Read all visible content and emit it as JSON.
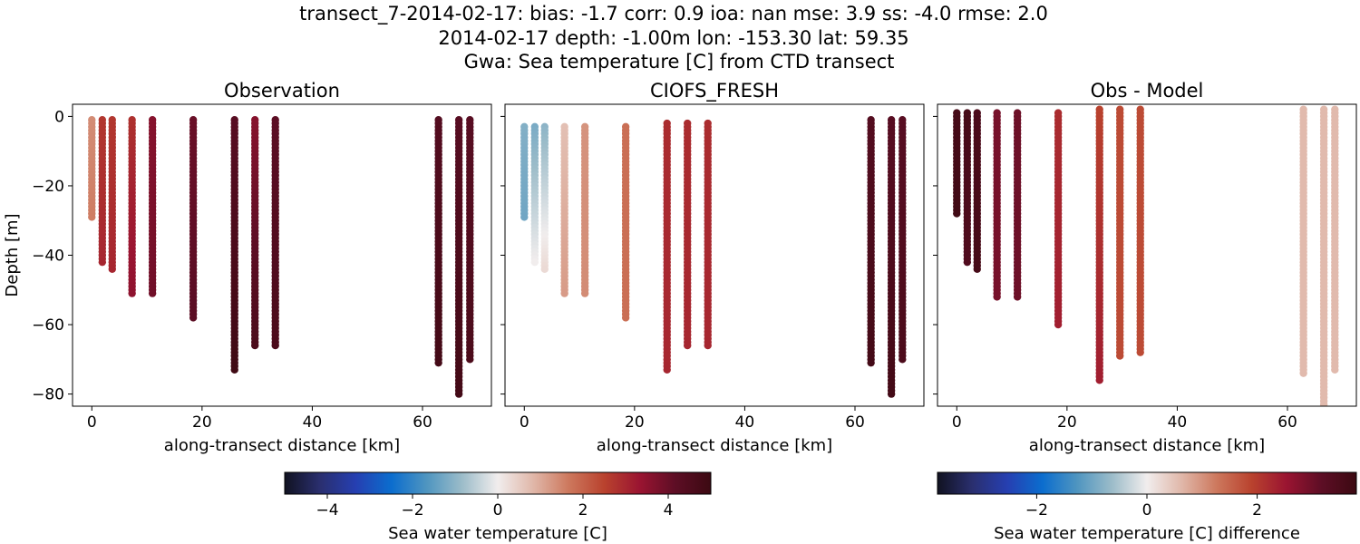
{
  "figure": {
    "title_lines": [
      "transect_7-2014-02-17: bias: -1.7  corr: 0.9  ioa: nan  mse: 3.9  ss: -4.0  rmse: 2.0",
      "2014-02-17 depth: -1.00m lon: -153.30 lat: 59.35",
      "Gwa: Sea temperature [C] from CTD transect"
    ]
  },
  "chart_data": [
    {
      "type": "scatter",
      "title": "Observation",
      "xlabel": "along-transect distance [km]",
      "ylabel": "Depth [m]",
      "xlim": [
        -3.5,
        72.5
      ],
      "ylim": [
        -83.5,
        3.5
      ],
      "xticks": [
        0,
        20,
        40,
        60
      ],
      "yticks": [
        0,
        -20,
        -40,
        -60,
        -80
      ],
      "show_y_tick_labels": true,
      "colormap": "balance",
      "vmin": -5,
      "vmax": 5,
      "profiles": [
        {
          "x": 0.0,
          "top": -1,
          "bottom": -29,
          "value_top": 1.4,
          "value_bottom": 1.6
        },
        {
          "x": 1.9,
          "top": -1,
          "bottom": -42,
          "value_top": 2.7,
          "value_bottom": 3.0
        },
        {
          "x": 3.7,
          "top": -1,
          "bottom": -44,
          "value_top": 2.7,
          "value_bottom": 3.0
        },
        {
          "x": 7.3,
          "top": -1,
          "bottom": -51,
          "value_top": 2.8,
          "value_bottom": 3.5
        },
        {
          "x": 11.0,
          "top": -1,
          "bottom": -51,
          "value_top": 3.6,
          "value_bottom": 3.9
        },
        {
          "x": 18.4,
          "top": -1,
          "bottom": -58,
          "value_top": 4.0,
          "value_bottom": 4.2
        },
        {
          "x": 25.9,
          "top": -1,
          "bottom": -73,
          "value_top": 4.3,
          "value_bottom": 4.9
        },
        {
          "x": 29.6,
          "top": -1,
          "bottom": -66,
          "value_top": 3.6,
          "value_bottom": 4.6
        },
        {
          "x": 33.3,
          "top": -1,
          "bottom": -66,
          "value_top": 4.2,
          "value_bottom": 4.6
        },
        {
          "x": 62.9,
          "top": -1,
          "bottom": -71,
          "value_top": 4.4,
          "value_bottom": 4.8
        },
        {
          "x": 66.6,
          "top": -1,
          "bottom": -80,
          "value_top": 4.3,
          "value_bottom": 4.8
        },
        {
          "x": 68.6,
          "top": -1,
          "bottom": -70,
          "value_top": 4.3,
          "value_bottom": 4.6
        }
      ]
    },
    {
      "type": "scatter",
      "title": "CIOFS_FRESH",
      "xlabel": "along-transect distance [km]",
      "ylabel": "",
      "xlim": [
        -3.5,
        72.5
      ],
      "ylim": [
        -83.5,
        3.5
      ],
      "xticks": [
        0,
        20,
        40,
        60
      ],
      "yticks": [
        0,
        -20,
        -40,
        -60,
        -80
      ],
      "show_y_tick_labels": false,
      "colormap": "balance",
      "vmin": -5,
      "vmax": 5,
      "profiles": [
        {
          "x": 0.0,
          "top": -3,
          "bottom": -29,
          "value_top": -1.1,
          "value_bottom": -1.3
        },
        {
          "x": 1.9,
          "top": -3,
          "bottom": -42,
          "value_top": -1.2,
          "value_bottom": 0.0
        },
        {
          "x": 3.7,
          "top": -3,
          "bottom": -44,
          "value_top": -1.0,
          "value_bottom": 0.3
        },
        {
          "x": 7.3,
          "top": -3,
          "bottom": -51,
          "value_top": 0.7,
          "value_bottom": 1.2
        },
        {
          "x": 11.0,
          "top": -3,
          "bottom": -51,
          "value_top": 1.3,
          "value_bottom": 1.4
        },
        {
          "x": 18.4,
          "top": -3,
          "bottom": -58,
          "value_top": 1.8,
          "value_bottom": 1.8
        },
        {
          "x": 25.9,
          "top": -2,
          "bottom": -73,
          "value_top": 2.9,
          "value_bottom": 3.0
        },
        {
          "x": 29.6,
          "top": -2,
          "bottom": -66,
          "value_top": 2.9,
          "value_bottom": 3.0
        },
        {
          "x": 33.3,
          "top": -2,
          "bottom": -66,
          "value_top": 2.9,
          "value_bottom": 3.0
        },
        {
          "x": 62.9,
          "top": -1,
          "bottom": -71,
          "value_top": 4.4,
          "value_bottom": 4.8
        },
        {
          "x": 66.6,
          "top": -1,
          "bottom": -80,
          "value_top": 4.3,
          "value_bottom": 4.8
        },
        {
          "x": 68.6,
          "top": -1,
          "bottom": -70,
          "value_top": 4.3,
          "value_bottom": 4.6
        }
      ]
    },
    {
      "type": "scatter",
      "title": "Obs - Model",
      "xlabel": "along-transect distance [km]",
      "ylabel": "",
      "xlim": [
        -3.5,
        72.5
      ],
      "ylim": [
        -83.5,
        3.5
      ],
      "xticks": [
        0,
        20,
        40,
        60
      ],
      "yticks": [
        0,
        -20,
        -40,
        -60,
        -80
      ],
      "show_y_tick_labels": false,
      "colormap": "balance",
      "vmin": -3.8,
      "vmax": 3.8,
      "profiles": [
        {
          "x": 0.0,
          "top": 1,
          "bottom": -28,
          "value_top": 3.6,
          "value_bottom": 3.7
        },
        {
          "x": 1.9,
          "top": 1,
          "bottom": -42,
          "value_top": 3.6,
          "value_bottom": 3.4
        },
        {
          "x": 3.7,
          "top": 1,
          "bottom": -44,
          "value_top": 3.5,
          "value_bottom": 3.6
        },
        {
          "x": 7.3,
          "top": 1,
          "bottom": -52,
          "value_top": 2.9,
          "value_bottom": 2.9
        },
        {
          "x": 11.0,
          "top": 1,
          "bottom": -52,
          "value_top": 3.0,
          "value_bottom": 3.0
        },
        {
          "x": 18.4,
          "top": 1,
          "bottom": -60,
          "value_top": 2.2,
          "value_bottom": 2.4
        },
        {
          "x": 25.9,
          "top": 2,
          "bottom": -76,
          "value_top": 1.9,
          "value_bottom": 2.4
        },
        {
          "x": 29.6,
          "top": 2,
          "bottom": -69,
          "value_top": 1.8,
          "value_bottom": 1.8
        },
        {
          "x": 33.3,
          "top": 2,
          "bottom": -68,
          "value_top": 1.8,
          "value_bottom": 1.8
        },
        {
          "x": 62.9,
          "top": 2,
          "bottom": -74,
          "value_top": 0.6,
          "value_bottom": 0.6
        },
        {
          "x": 66.6,
          "top": 2,
          "bottom": -85,
          "value_top": 0.6,
          "value_bottom": 0.6
        },
        {
          "x": 68.6,
          "top": 2,
          "bottom": -73,
          "value_top": 0.6,
          "value_bottom": 0.6
        }
      ]
    }
  ],
  "colorbars": [
    {
      "label": "Sea water temperature [C]",
      "vmin": -5,
      "vmax": 5,
      "ticks": [
        -4,
        -2,
        0,
        2,
        4
      ],
      "tick_labels": [
        "−4",
        "−2",
        "0",
        "2",
        "4"
      ]
    },
    {
      "label": "Sea water temperature [C] difference",
      "vmin": -3.8,
      "vmax": 3.8,
      "ticks": [
        -2,
        0,
        2
      ],
      "tick_labels": [
        "−2",
        "0",
        "2"
      ]
    }
  ],
  "colormap_stops": [
    "#111221",
    "#2a2f6f",
    "#263fb1",
    "#0b6dce",
    "#4f95c0",
    "#9cbcc9",
    "#f1eded",
    "#e0b7a9",
    "#cd785d",
    "#b9422e",
    "#9a1431",
    "#5d0e25",
    "#3c0912"
  ],
  "ytick_labels": [
    "0",
    "−20",
    "−40",
    "−60",
    "−80"
  ],
  "xtick_labels": [
    "0",
    "20",
    "40",
    "60"
  ]
}
